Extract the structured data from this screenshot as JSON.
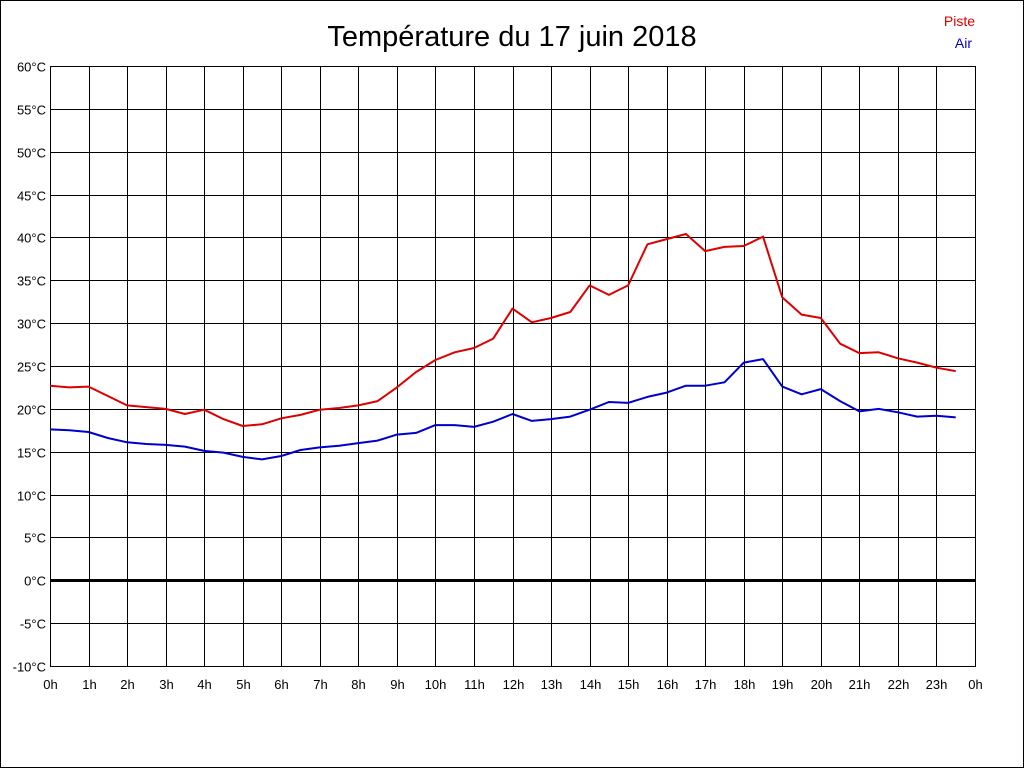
{
  "chart_data": {
    "type": "line",
    "title": "Température du 17 juin 2018",
    "xlabel": "",
    "ylabel": "",
    "grid": true,
    "legend_position": "top-right",
    "x_ticks": [
      "0h",
      "1h",
      "2h",
      "3h",
      "4h",
      "5h",
      "6h",
      "7h",
      "8h",
      "9h",
      "10h",
      "11h",
      "12h",
      "13h",
      "14h",
      "15h",
      "16h",
      "17h",
      "18h",
      "19h",
      "20h",
      "21h",
      "22h",
      "23h",
      "0h"
    ],
    "y_ticks": [
      "60°C",
      "55°C",
      "50°C",
      "45°C",
      "40°C",
      "35°C",
      "30°C",
      "25°C",
      "20°C",
      "15°C",
      "10°C",
      "5°C",
      "0°C",
      "-5°C",
      "-10°C"
    ],
    "xlim": [
      0,
      24
    ],
    "ylim": [
      -10,
      60
    ],
    "x": [
      0,
      0.5,
      1,
      1.5,
      2,
      2.5,
      3,
      3.5,
      4,
      4.5,
      5,
      5.5,
      6,
      6.5,
      7,
      7.5,
      8,
      8.5,
      9,
      9.5,
      10,
      10.5,
      11,
      11.5,
      12,
      12.5,
      13,
      13.5,
      14,
      14.5,
      15,
      15.5,
      16,
      16.5,
      17,
      17.5,
      18,
      18.5,
      19,
      19.5,
      20,
      20.5,
      21,
      21.5,
      22,
      22.5,
      23,
      23.5
    ],
    "series": [
      {
        "name": "Piste",
        "color": "#dd0000",
        "values": [
          22.7,
          22.5,
          22.6,
          21.5,
          20.4,
          20.2,
          20.0,
          19.4,
          19.9,
          18.8,
          18.0,
          18.2,
          18.9,
          19.3,
          19.9,
          20.1,
          20.4,
          20.9,
          22.5,
          24.3,
          25.7,
          26.6,
          27.1,
          28.2,
          31.7,
          30.1,
          30.6,
          31.3,
          34.4,
          33.3,
          34.4,
          39.2,
          39.8,
          40.4,
          38.4,
          38.9,
          39.0,
          40.1,
          33.0,
          31.0,
          30.6,
          27.6,
          26.5,
          26.6,
          25.9,
          25.4,
          24.8,
          24.4
        ]
      },
      {
        "name": "Air",
        "color": "#0000cc",
        "values": [
          17.6,
          17.5,
          17.3,
          16.6,
          16.1,
          15.9,
          15.8,
          15.6,
          15.1,
          14.9,
          14.4,
          14.1,
          14.5,
          15.2,
          15.5,
          15.7,
          16.0,
          16.3,
          17.0,
          17.2,
          18.1,
          18.1,
          17.9,
          18.5,
          19.4,
          18.6,
          18.8,
          19.1,
          19.9,
          20.8,
          20.7,
          21.4,
          21.9,
          22.7,
          22.7,
          23.1,
          25.4,
          25.8,
          22.6,
          21.7,
          22.3,
          20.9,
          19.7,
          20.0,
          19.6,
          19.1,
          19.2,
          19.0
        ]
      }
    ]
  }
}
